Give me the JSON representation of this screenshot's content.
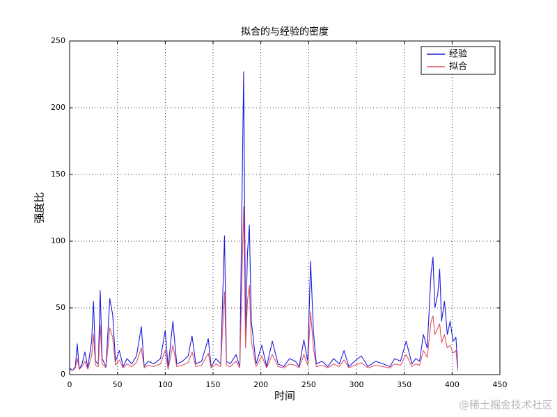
{
  "chart_data": {
    "type": "line",
    "title": "拟合的与经验的密度",
    "xlabel": "时间",
    "ylabel": "强度比",
    "x": [
      0,
      3,
      6,
      8,
      10,
      13,
      16,
      19,
      23,
      25,
      27,
      30,
      32,
      34,
      38,
      42,
      45,
      48,
      52,
      56,
      60,
      65,
      70,
      75,
      78,
      82,
      88,
      95,
      100,
      103,
      108,
      112,
      118,
      124,
      128,
      132,
      138,
      145,
      148,
      153,
      158,
      162,
      164,
      168,
      174,
      178,
      182,
      184,
      186,
      188,
      190,
      195,
      201,
      206,
      212,
      218,
      224,
      230,
      236,
      240,
      245,
      249,
      252,
      255,
      258,
      264,
      270,
      276,
      282,
      287,
      292,
      298,
      305,
      312,
      320,
      328,
      335,
      340,
      346,
      352,
      358,
      362,
      366,
      370,
      374,
      378,
      380,
      382,
      385,
      387,
      389,
      392,
      395,
      398,
      401,
      404,
      406
    ],
    "series": [
      {
        "name": "经验",
        "color": "#1a1adb",
        "values": [
          5,
          3,
          6,
          23,
          4,
          8,
          17,
          5,
          25,
          55,
          10,
          8,
          63,
          12,
          6,
          57,
          45,
          10,
          18,
          6,
          12,
          8,
          14,
          36,
          6,
          10,
          8,
          12,
          33,
          5,
          40,
          8,
          10,
          14,
          29,
          8,
          10,
          27,
          6,
          12,
          8,
          104,
          10,
          8,
          15,
          6,
          227,
          30,
          91,
          112,
          40,
          8,
          22,
          6,
          25,
          8,
          6,
          12,
          10,
          6,
          26,
          10,
          85,
          32,
          8,
          10,
          6,
          12,
          8,
          18,
          6,
          10,
          14,
          6,
          10,
          8,
          6,
          12,
          10,
          25,
          8,
          12,
          10,
          30,
          20,
          76,
          88,
          50,
          60,
          79,
          40,
          55,
          30,
          40,
          25,
          28,
          5
        ]
      },
      {
        "name": "拟合",
        "color": "#e0505f",
        "values": [
          4,
          3,
          5,
          12,
          4,
          6,
          10,
          4,
          14,
          30,
          7,
          6,
          37,
          8,
          5,
          35,
          28,
          7,
          11,
          5,
          8,
          6,
          9,
          20,
          5,
          7,
          6,
          8,
          18,
          4,
          22,
          6,
          7,
          9,
          17,
          6,
          7,
          16,
          5,
          8,
          6,
          62,
          7,
          6,
          10,
          5,
          126,
          20,
          55,
          67,
          25,
          6,
          14,
          5,
          15,
          6,
          5,
          8,
          7,
          5,
          15,
          7,
          47,
          20,
          6,
          7,
          5,
          8,
          6,
          11,
          5,
          7,
          9,
          5,
          7,
          6,
          5,
          8,
          7,
          15,
          6,
          8,
          7,
          18,
          13,
          40,
          44,
          30,
          35,
          38,
          24,
          30,
          20,
          22,
          16,
          18,
          3
        ]
      }
    ],
    "xlim": [
      0,
      450
    ],
    "xticks": [
      0,
      50,
      100,
      150,
      200,
      250,
      300,
      350,
      400,
      450
    ],
    "ylim": [
      0,
      250
    ],
    "yticks": [
      0,
      50,
      100,
      150,
      200,
      250
    ],
    "grid": true,
    "legend": "upper right"
  },
  "watermark": "@稀土掘金技术社区"
}
